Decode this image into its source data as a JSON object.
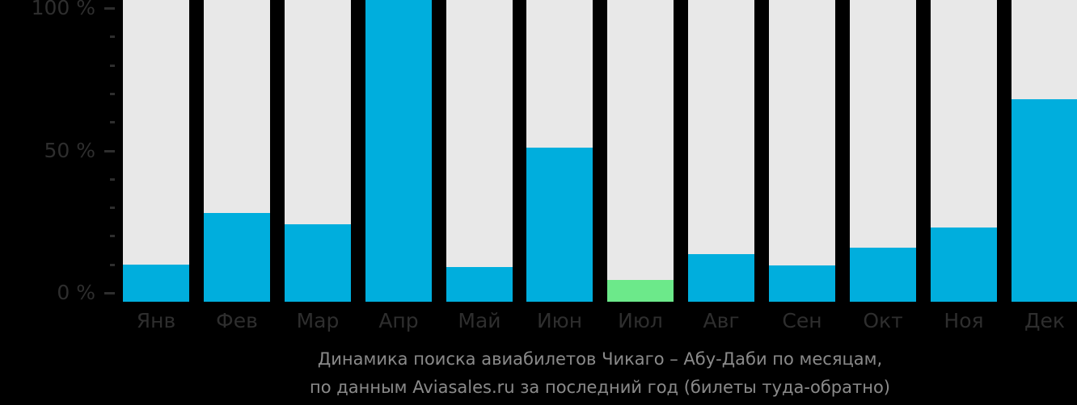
{
  "chart_data": {
    "type": "bar",
    "title": "Динамика поиска авиабилетов Чикаго – Абу-Даби по месяцам,",
    "subtitle": "по данным Aviasales.ru за последний год (билеты туда-обратно)",
    "categories": [
      "Янв",
      "Фев",
      "Мар",
      "Апр",
      "Май",
      "Июн",
      "Июл",
      "Авг",
      "Сен",
      "Окт",
      "Ноя",
      "Дек"
    ],
    "values": [
      10,
      28,
      24,
      100,
      9,
      51,
      4.5,
      13.5,
      9.5,
      16,
      23,
      68
    ],
    "unit": "%",
    "xlabel": "",
    "ylabel": "",
    "ylim": [
      0,
      100
    ],
    "y_major_ticks": [
      {
        "label": "100 %",
        "value": 100
      },
      {
        "label": "50 %",
        "value": 50
      },
      {
        "label": "0 %",
        "value": 0
      }
    ],
    "y_minor_tick_values": [
      90,
      80,
      70,
      60,
      40,
      30,
      20,
      10
    ],
    "grid": false,
    "legend": "none",
    "bar_track_full_height": true,
    "highlight": {
      "category": "Июл",
      "color": "#6ce98a"
    },
    "colors": {
      "bar_fill": "#00aedd",
      "bar_highlight": "#6ce98a",
      "bar_track": "#e8e8e8",
      "axis_text": "#2e2e2e",
      "caption_text": "#8a8a8a",
      "background": "#000000"
    },
    "notes": "April bar reaches the top edge of the image (max value, clipped at 100 % line)"
  }
}
